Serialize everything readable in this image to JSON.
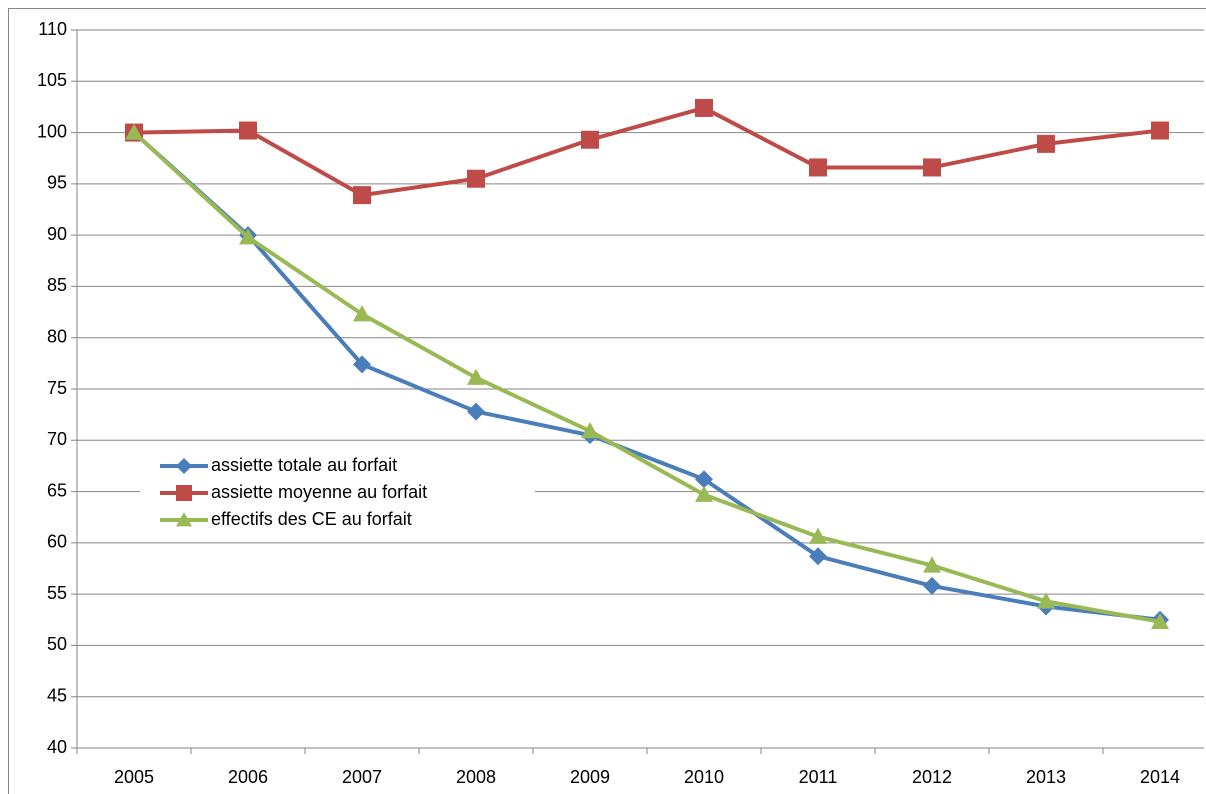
{
  "chart_data": {
    "type": "line",
    "categories": [
      "2005",
      "2006",
      "2007",
      "2008",
      "2009",
      "2010",
      "2011",
      "2012",
      "2013",
      "2014"
    ],
    "series": [
      {
        "name": "assiette totale au forfait",
        "color": "#4a7ebb",
        "marker": "diamond",
        "values": [
          100,
          90,
          77.4,
          72.8,
          70.5,
          66.2,
          58.7,
          55.8,
          53.8,
          52.5
        ]
      },
      {
        "name": "assiette moyenne au forfait",
        "color": "#be4b48",
        "marker": "square",
        "values": [
          100,
          100.2,
          93.9,
          95.5,
          99.3,
          102.4,
          96.6,
          96.6,
          98.9,
          100.2
        ]
      },
      {
        "name": "effectifs des CE au forfait",
        "color": "#98b954",
        "marker": "triangle",
        "values": [
          100,
          89.8,
          82.3,
          76.1,
          70.9,
          64.7,
          60.6,
          57.8,
          54.3,
          52.3
        ]
      }
    ],
    "ylim": [
      40,
      110
    ],
    "yticks": [
      40,
      45,
      50,
      55,
      60,
      65,
      70,
      75,
      80,
      85,
      90,
      95,
      100,
      105,
      110
    ],
    "grid": true,
    "legend": "left"
  }
}
